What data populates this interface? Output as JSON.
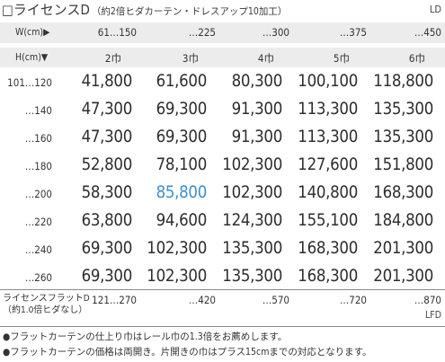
{
  "title": {
    "main": "□ライセンスD",
    "sub": "（約2倍ヒダカーテン・ドレスアップ10加工）",
    "code": "LD"
  },
  "width_header": {
    "label": "W(cm)▶",
    "values": [
      "61…150",
      "…225",
      "…300",
      "…375",
      "…450"
    ]
  },
  "height_header": {
    "label": "H(cm)▼",
    "widths": [
      "2巾",
      "3巾",
      "4巾",
      "5巾",
      "6巾"
    ]
  },
  "rows": [
    {
      "height": "101…120",
      "prices": [
        "41,800",
        "61,600",
        "80,300",
        "100,100",
        "118,800"
      ]
    },
    {
      "height": "…140",
      "prices": [
        "47,300",
        "69,300",
        "91,300",
        "113,300",
        "135,300"
      ]
    },
    {
      "height": "…160",
      "prices": [
        "47,300",
        "69,300",
        "91,300",
        "113,300",
        "135,300"
      ]
    },
    {
      "height": "…180",
      "prices": [
        "52,800",
        "78,100",
        "102,300",
        "127,600",
        "151,800"
      ]
    },
    {
      "height": "…200",
      "prices": [
        "58,300",
        "85,800",
        "102,300",
        "140,800",
        "168,300"
      ]
    },
    {
      "height": "…220",
      "prices": [
        "63,800",
        "94,600",
        "124,300",
        "155,100",
        "184,800"
      ]
    },
    {
      "height": "…240",
      "prices": [
        "69,300",
        "102,300",
        "135,300",
        "168,300",
        "201,300"
      ]
    },
    {
      "height": "…260",
      "prices": [
        "69,300",
        "102,300",
        "135,300",
        "168,300",
        "201,300"
      ]
    }
  ],
  "highlight": {
    "row": 4,
    "col": 1,
    "color": "#3b8fd0"
  },
  "flat": {
    "label_line1": "ライセンスフラットD",
    "label_line2": "（約1.0倍ヒダなし）",
    "values": [
      "121…270",
      "…420",
      "…570",
      "…720",
      "…870"
    ],
    "code": "LFD"
  },
  "notes": [
    "●フラットカーテンの仕上り巾はレール巾の1.3倍をお薦めします。",
    "●フラットカーテンの価格は両開き。片開きの巾はプラス15cmまでの対応となります。"
  ]
}
